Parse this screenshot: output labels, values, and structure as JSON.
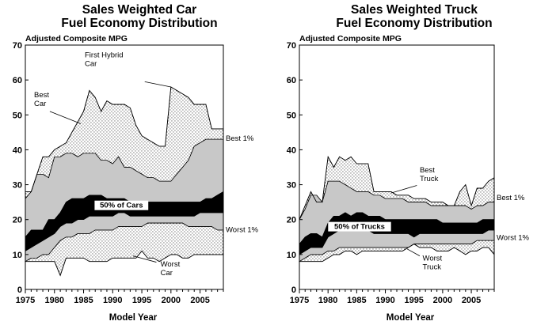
{
  "chart_data": [
    {
      "type": "area",
      "title": [
        "Sales Weighted Car",
        "Fuel Economy Distribution"
      ],
      "ylabel": "Adjusted Composite MPG",
      "xlabel": "Model Year",
      "xlim": [
        1975,
        2009
      ],
      "ylim": [
        0,
        70
      ],
      "xticks": [
        1975,
        1980,
        1985,
        1990,
        1995,
        2000,
        2005
      ],
      "yticks": [
        0,
        10,
        20,
        30,
        40,
        50,
        60,
        70
      ],
      "grid": false,
      "x": [
        1975,
        1976,
        1977,
        1978,
        1979,
        1980,
        1981,
        1982,
        1983,
        1984,
        1985,
        1986,
        1987,
        1988,
        1989,
        1990,
        1991,
        1992,
        1993,
        1994,
        1995,
        1996,
        1997,
        1998,
        1999,
        2000,
        2001,
        2002,
        2003,
        2004,
        2005,
        2006,
        2007,
        2008,
        2009
      ],
      "series": [
        {
          "name": "Best",
          "values": [
            28,
            28,
            33,
            38,
            38,
            40,
            41,
            42,
            45,
            48,
            51,
            57,
            55,
            51,
            54,
            53,
            53,
            53,
            52,
            47,
            44,
            43,
            42,
            41,
            41,
            58,
            57,
            56,
            55,
            53,
            53,
            53,
            46,
            46,
            46
          ]
        },
        {
          "name": "Best 1%",
          "values": [
            26,
            28,
            33,
            33,
            32,
            38,
            38,
            39,
            39,
            38,
            39,
            39,
            39,
            37,
            37,
            36,
            38,
            35,
            35,
            34,
            33,
            32,
            32,
            31,
            31,
            31,
            33,
            35,
            37,
            41,
            42,
            43,
            43,
            43,
            43
          ]
        },
        {
          "name": "50% of Cars upper",
          "values": [
            15,
            17,
            17,
            17,
            20,
            20,
            22,
            25,
            26,
            26,
            26,
            27,
            27,
            27,
            26,
            26,
            26,
            26,
            25,
            25,
            25,
            25,
            25,
            25,
            25,
            25,
            25,
            25,
            25,
            25,
            25,
            26,
            26,
            27,
            28
          ]
        },
        {
          "name": "50% of Cars lower",
          "values": [
            11,
            12,
            13,
            14,
            15,
            16,
            18,
            19,
            19,
            20,
            20,
            21,
            21,
            21,
            21,
            21,
            22,
            22,
            21,
            21,
            21,
            21,
            21,
            21,
            21,
            21,
            21,
            21,
            21,
            21,
            22,
            22,
            22,
            22,
            22
          ]
        },
        {
          "name": "Worst 1%",
          "values": [
            8,
            9,
            9,
            10,
            10,
            12,
            14,
            15,
            15,
            16,
            16,
            16,
            17,
            17,
            17,
            17,
            18,
            18,
            18,
            18,
            18,
            19,
            19,
            19,
            19,
            19,
            19,
            19,
            18,
            18,
            18,
            18,
            18,
            17,
            17
          ]
        },
        {
          "name": "Worst",
          "values": [
            8,
            8,
            8,
            8,
            8,
            8,
            4,
            9,
            9,
            9,
            9,
            8,
            8,
            8,
            8,
            9,
            9,
            9,
            9,
            9,
            11,
            9,
            9,
            8,
            9,
            10,
            10,
            9,
            9,
            10,
            10,
            10,
            10,
            10,
            10
          ]
        }
      ],
      "annotations": [
        "First Hybrid Car",
        "Best Car",
        "50% of Cars",
        "Best 1%",
        "Worst 1%",
        "Worst Car"
      ]
    },
    {
      "type": "area",
      "title": [
        "Sales Weighted Truck",
        "Fuel Economy Distribution"
      ],
      "ylabel": "Adjusted Composite MPG",
      "xlabel": "Model Year",
      "xlim": [
        1975,
        2009
      ],
      "ylim": [
        0,
        70
      ],
      "xticks": [
        1975,
        1980,
        1985,
        1990,
        1995,
        2000,
        2005
      ],
      "yticks": [
        0,
        10,
        20,
        30,
        40,
        50,
        60,
        70
      ],
      "grid": false,
      "x": [
        1975,
        1976,
        1977,
        1978,
        1979,
        1980,
        1981,
        1982,
        1983,
        1984,
        1985,
        1986,
        1987,
        1988,
        1989,
        1990,
        1991,
        1992,
        1993,
        1994,
        1995,
        1996,
        1997,
        1998,
        1999,
        2000,
        2001,
        2002,
        2003,
        2004,
        2005,
        2006,
        2007,
        2008,
        2009
      ],
      "series": [
        {
          "name": "Best",
          "values": [
            20,
            24,
            28,
            25,
            25,
            38,
            35,
            38,
            37,
            38,
            36,
            36,
            36,
            28,
            28,
            28,
            28,
            27,
            27,
            27,
            26,
            26,
            26,
            25,
            25,
            25,
            24,
            24,
            28,
            30,
            24,
            29,
            29,
            31,
            32
          ]
        },
        {
          "name": "Best 1%",
          "values": [
            20,
            23,
            27,
            27,
            25,
            31,
            31,
            31,
            30,
            29,
            28,
            28,
            28,
            27,
            27,
            26,
            26,
            26,
            26,
            25,
            25,
            25,
            25,
            24,
            24,
            24,
            24,
            24,
            24,
            24,
            23,
            24,
            24,
            25,
            25
          ]
        },
        {
          "name": "50% of Trucks upper",
          "values": [
            13,
            15,
            16,
            16,
            15,
            19,
            21,
            21,
            22,
            21,
            22,
            22,
            21,
            21,
            21,
            20,
            20,
            20,
            20,
            20,
            20,
            20,
            20,
            20,
            20,
            19,
            19,
            19,
            19,
            19,
            19,
            19,
            20,
            20,
            20
          ]
        },
        {
          "name": "50% of Trucks lower",
          "values": [
            10,
            11,
            12,
            12,
            12,
            15,
            16,
            17,
            17,
            17,
            17,
            17,
            17,
            16,
            16,
            16,
            16,
            16,
            16,
            16,
            15,
            16,
            16,
            16,
            16,
            16,
            16,
            16,
            16,
            16,
            16,
            16,
            16,
            17,
            17
          ]
        },
        {
          "name": "Worst 1%",
          "values": [
            8,
            9,
            10,
            10,
            10,
            11,
            11,
            12,
            12,
            12,
            12,
            12,
            12,
            12,
            12,
            12,
            12,
            12,
            12,
            12,
            13,
            13,
            13,
            13,
            13,
            13,
            13,
            13,
            13,
            13,
            13,
            14,
            14,
            14,
            14
          ]
        },
        {
          "name": "Worst",
          "values": [
            8,
            8,
            8,
            8,
            8,
            9,
            10,
            10,
            11,
            11,
            10,
            11,
            11,
            11,
            11,
            11,
            11,
            11,
            11,
            12,
            13,
            12,
            12,
            12,
            11,
            11,
            11,
            12,
            11,
            10,
            11,
            11,
            12,
            12,
            10
          ]
        }
      ],
      "annotations": [
        "Best Truck",
        "50% of Trucks",
        "Best 1%",
        "Worst 1%",
        "Worst Truck"
      ]
    }
  ],
  "colors": {
    "outer_band": "#ffffff",
    "stipple": "#000000",
    "best_1_band": "#c8c8c8",
    "middle_50_band": "#000000",
    "inner_band": "#c8c8c8",
    "axis": "#000000"
  }
}
